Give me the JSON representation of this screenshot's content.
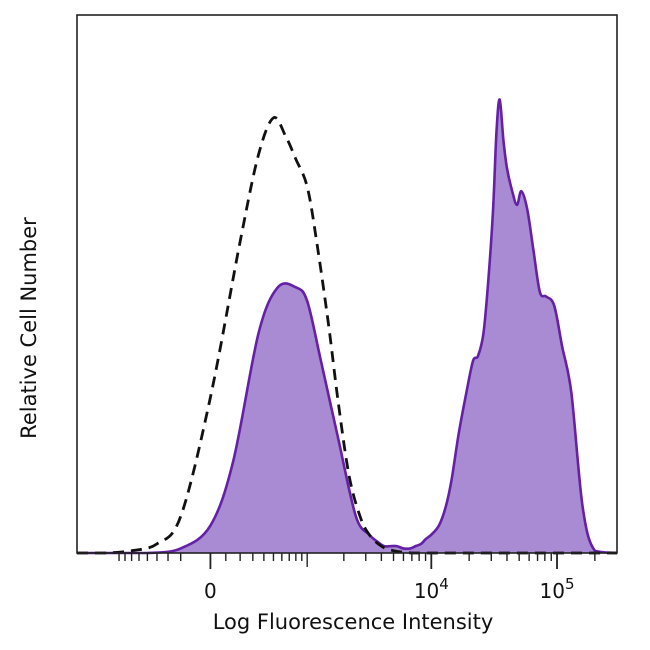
{
  "chart_data": {
    "type": "area",
    "title": "",
    "xlabel": "Log Fluorescence Intensity",
    "ylabel": "Relative Cell Number",
    "x_scale": "biexponential",
    "xlim": [
      -2000,
      300000
    ],
    "ylim": [
      0,
      100
    ],
    "grid": false,
    "legend": "none",
    "x_ticks": [
      {
        "value": 0,
        "label": "0"
      },
      {
        "value": 10000,
        "base": "10",
        "exp": "4"
      },
      {
        "value": 100000,
        "base": "10",
        "exp": "5"
      }
    ],
    "series": [
      {
        "style": "filled",
        "fill_color": "#a98bd3",
        "line_color": "#6421a6",
        "x": [
          -2000,
          -1200,
          -500,
          -200,
          0,
          150,
          350,
          550,
          800,
          1000,
          1300,
          1800,
          2500,
          3200,
          3700,
          4200,
          4700,
          5300,
          6000,
          6800,
          7500,
          8300,
          9000,
          10000,
          11500,
          13000,
          14500,
          16500,
          19000,
          21500,
          23500,
          26000,
          28500,
          31000,
          33000,
          35000,
          37500,
          40000,
          44000,
          48000,
          52000,
          58000,
          65000,
          73000,
          82000,
          95000,
          110000,
          130000,
          160000,
          200000,
          300000
        ],
        "y": [
          0,
          0,
          0,
          1,
          6,
          20,
          48,
          58,
          58,
          55,
          42,
          25,
          8,
          4,
          2.5,
          1.5,
          1.5,
          1.5,
          1,
          1,
          1.5,
          2,
          3,
          4,
          6,
          10,
          16,
          26,
          35,
          42,
          43,
          48,
          60,
          75,
          92,
          99,
          90,
          84,
          79,
          76,
          79,
          75,
          66,
          57,
          56,
          54,
          45,
          35,
          10,
          0.5,
          0
        ]
      },
      {
        "style": "dashed",
        "line_color": "#111111",
        "x": [
          -2000,
          -1200,
          -700,
          -400,
          -200,
          0,
          200,
          350,
          500,
          650,
          800,
          1000,
          1200,
          1500,
          1800,
          2200,
          2700,
          3200,
          4000,
          5000,
          7000,
          10000,
          20000,
          300000
        ],
        "y": [
          0,
          0,
          0.5,
          2,
          8,
          34,
          68,
          87,
          95,
          91,
          86,
          80,
          68,
          50,
          33,
          17,
          8,
          4,
          1.5,
          0.5,
          0,
          0,
          0,
          0
        ]
      }
    ]
  }
}
